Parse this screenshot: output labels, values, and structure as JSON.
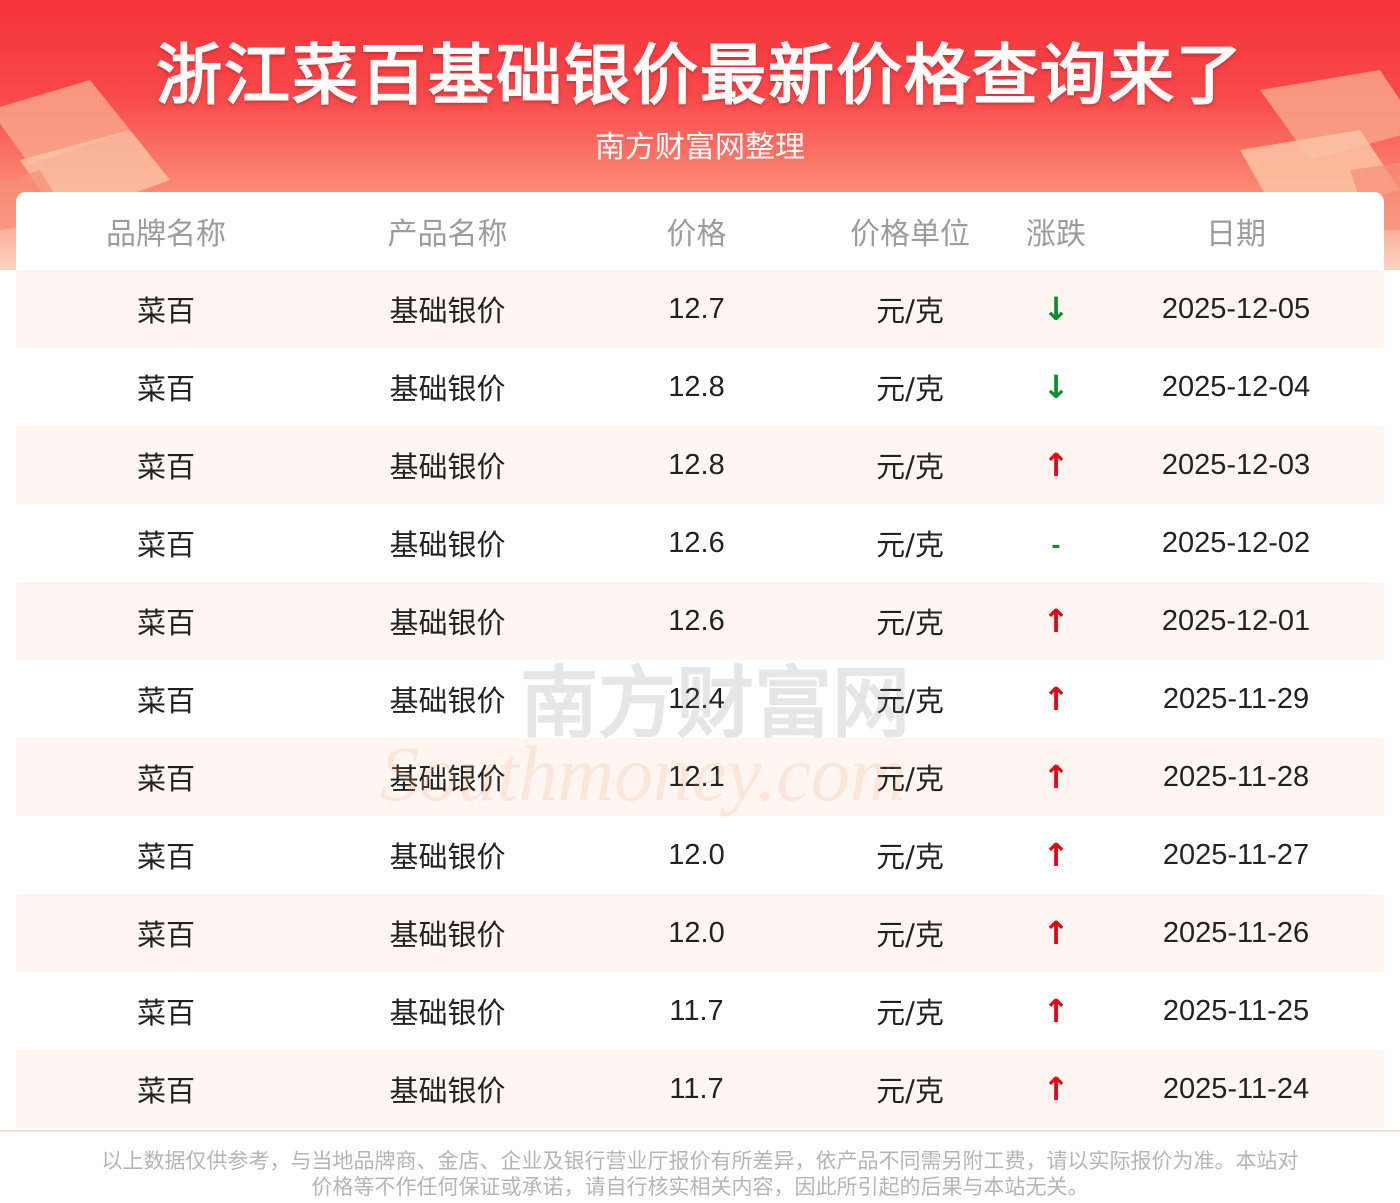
{
  "header": {
    "title": "浙江菜百基础银价最新价格查询来了",
    "subtitle": "南方财富网整理"
  },
  "table": {
    "columns": [
      "品牌名称",
      "产品名称",
      "价格",
      "价格单位",
      "涨跌",
      "日期"
    ],
    "rows": [
      {
        "brand": "菜百",
        "product": "基础银价",
        "price": "12.7",
        "unit": "元/克",
        "trend": "↓",
        "trend_dir": "down",
        "date": "2025-12-05"
      },
      {
        "brand": "菜百",
        "product": "基础银价",
        "price": "12.8",
        "unit": "元/克",
        "trend": "↓",
        "trend_dir": "down",
        "date": "2025-12-04"
      },
      {
        "brand": "菜百",
        "product": "基础银价",
        "price": "12.8",
        "unit": "元/克",
        "trend": "↑",
        "trend_dir": "up",
        "date": "2025-12-03"
      },
      {
        "brand": "菜百",
        "product": "基础银价",
        "price": "12.6",
        "unit": "元/克",
        "trend": "-",
        "trend_dir": "flat",
        "date": "2025-12-02"
      },
      {
        "brand": "菜百",
        "product": "基础银价",
        "price": "12.6",
        "unit": "元/克",
        "trend": "↑",
        "trend_dir": "up",
        "date": "2025-12-01"
      },
      {
        "brand": "菜百",
        "product": "基础银价",
        "price": "12.4",
        "unit": "元/克",
        "trend": "↑",
        "trend_dir": "up",
        "date": "2025-11-29"
      },
      {
        "brand": "菜百",
        "product": "基础银价",
        "price": "12.1",
        "unit": "元/克",
        "trend": "↑",
        "trend_dir": "up",
        "date": "2025-11-28"
      },
      {
        "brand": "菜百",
        "product": "基础银价",
        "price": "12.0",
        "unit": "元/克",
        "trend": "↑",
        "trend_dir": "up",
        "date": "2025-11-27"
      },
      {
        "brand": "菜百",
        "product": "基础银价",
        "price": "12.0",
        "unit": "元/克",
        "trend": "↑",
        "trend_dir": "up",
        "date": "2025-11-26"
      },
      {
        "brand": "菜百",
        "product": "基础银价",
        "price": "11.7",
        "unit": "元/克",
        "trend": "↑",
        "trend_dir": "up",
        "date": "2025-11-25"
      },
      {
        "brand": "菜百",
        "product": "基础银价",
        "price": "11.7",
        "unit": "元/克",
        "trend": "↑",
        "trend_dir": "up",
        "date": "2025-11-24"
      }
    ]
  },
  "watermark": {
    "cn": "南方财富网",
    "en": "Southmoney.com"
  },
  "footer": {
    "disclaimer_line1": "以上数据仅供参考，与当地品牌商、金店、企业及银行营业厅报价有所差异，依产品不同需另附工费，请以实际报价为准。本站对",
    "disclaimer_line2": "价格等不作任何保证或承诺，请自行核实相关内容，因此所引起的后果与本站无关。"
  },
  "colors": {
    "up": "#e60012",
    "down": "#0a8f2c",
    "banner_red": "#f5333a"
  }
}
